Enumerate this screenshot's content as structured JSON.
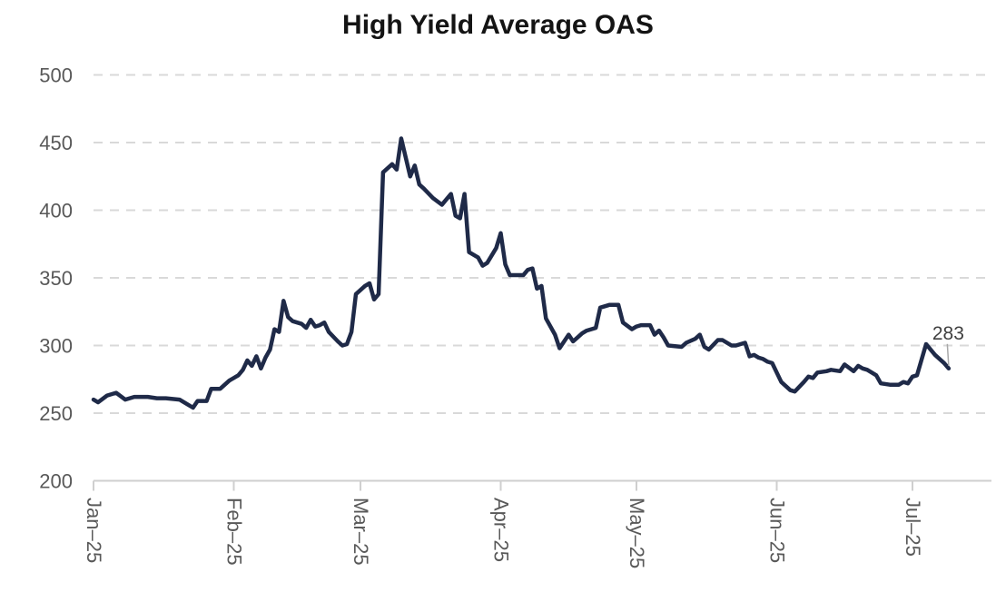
{
  "chart_data": {
    "type": "line",
    "title": "High Yield Average OAS",
    "xlabel": "",
    "ylabel": "",
    "ylim": [
      200,
      500
    ],
    "y_ticks": [
      200,
      250,
      300,
      350,
      400,
      450,
      500
    ],
    "x_ticks": [
      {
        "label": "Jan–25",
        "day": 0
      },
      {
        "label": "Feb–25",
        "day": 31
      },
      {
        "label": "Mar–25",
        "day": 59
      },
      {
        "label": "Apr–25",
        "day": 90
      },
      {
        "label": "May–25",
        "day": 120
      },
      {
        "label": "Jun–25",
        "day": 151
      },
      {
        "label": "Jul–25",
        "day": 181
      }
    ],
    "x_range_days": [
      0,
      198
    ],
    "grid": "dashed-horizontal",
    "legend": "none",
    "last_value_label": "283",
    "series": [
      {
        "name": "High Yield Average OAS",
        "color": "#1f2a48",
        "points": [
          [
            0,
            260
          ],
          [
            1,
            258
          ],
          [
            3,
            263
          ],
          [
            5,
            265
          ],
          [
            7,
            260
          ],
          [
            9,
            262
          ],
          [
            12,
            262
          ],
          [
            14,
            261
          ],
          [
            16,
            261
          ],
          [
            19,
            260
          ],
          [
            20,
            258
          ],
          [
            22,
            254
          ],
          [
            23,
            259
          ],
          [
            25,
            259
          ],
          [
            26,
            268
          ],
          [
            28,
            268
          ],
          [
            29,
            271
          ],
          [
            30,
            274
          ],
          [
            32,
            278
          ],
          [
            33,
            282
          ],
          [
            34,
            289
          ],
          [
            35,
            285
          ],
          [
            36,
            292
          ],
          [
            37,
            283
          ],
          [
            38,
            291
          ],
          [
            39,
            297
          ],
          [
            40,
            312
          ],
          [
            41,
            310
          ],
          [
            42,
            333
          ],
          [
            43,
            321
          ],
          [
            44,
            318
          ],
          [
            46,
            316
          ],
          [
            47,
            313
          ],
          [
            48,
            319
          ],
          [
            49,
            314
          ],
          [
            50,
            315
          ],
          [
            51,
            317
          ],
          [
            52,
            310
          ],
          [
            54,
            303
          ],
          [
            55,
            300
          ],
          [
            56,
            301
          ],
          [
            57,
            310
          ],
          [
            58,
            338
          ],
          [
            59,
            341
          ],
          [
            60,
            344
          ],
          [
            61,
            346
          ],
          [
            62,
            334
          ],
          [
            63,
            338
          ],
          [
            64,
            428
          ],
          [
            66,
            434
          ],
          [
            67,
            430
          ],
          [
            68,
            453
          ],
          [
            70,
            425
          ],
          [
            71,
            433
          ],
          [
            72,
            419
          ],
          [
            73,
            416
          ],
          [
            75,
            409
          ],
          [
            77,
            404
          ],
          [
            79,
            412
          ],
          [
            80,
            396
          ],
          [
            81,
            394
          ],
          [
            82,
            412
          ],
          [
            83,
            369
          ],
          [
            85,
            365
          ],
          [
            86,
            359
          ],
          [
            87,
            361
          ],
          [
            89,
            372
          ],
          [
            90,
            383
          ],
          [
            91,
            360
          ],
          [
            92,
            352
          ],
          [
            95,
            352
          ],
          [
            96,
            356
          ],
          [
            97,
            357
          ],
          [
            98,
            342
          ],
          [
            99,
            344
          ],
          [
            100,
            320
          ],
          [
            102,
            308
          ],
          [
            103,
            298
          ],
          [
            105,
            308
          ],
          [
            106,
            303
          ],
          [
            108,
            309
          ],
          [
            109,
            311
          ],
          [
            111,
            313
          ],
          [
            112,
            328
          ],
          [
            114,
            330
          ],
          [
            116,
            330
          ],
          [
            117,
            317
          ],
          [
            119,
            312
          ],
          [
            120,
            314
          ],
          [
            121,
            315
          ],
          [
            123,
            315
          ],
          [
            124,
            308
          ],
          [
            125,
            311
          ],
          [
            126,
            306
          ],
          [
            127,
            300
          ],
          [
            130,
            299
          ],
          [
            131,
            302
          ],
          [
            133,
            305
          ],
          [
            134,
            308
          ],
          [
            135,
            299
          ],
          [
            136,
            297
          ],
          [
            138,
            304
          ],
          [
            139,
            304
          ],
          [
            141,
            300
          ],
          [
            142,
            300
          ],
          [
            144,
            302
          ],
          [
            145,
            292
          ],
          [
            146,
            293
          ],
          [
            147,
            291
          ],
          [
            148,
            290
          ],
          [
            149,
            288
          ],
          [
            150,
            287
          ],
          [
            151,
            280
          ],
          [
            152,
            273
          ],
          [
            154,
            267
          ],
          [
            155,
            266
          ],
          [
            157,
            273
          ],
          [
            158,
            277
          ],
          [
            159,
            276
          ],
          [
            160,
            280
          ],
          [
            162,
            281
          ],
          [
            163,
            282
          ],
          [
            165,
            281
          ],
          [
            166,
            286
          ],
          [
            168,
            281
          ],
          [
            169,
            285
          ],
          [
            170,
            283
          ],
          [
            171,
            282
          ],
          [
            173,
            278
          ],
          [
            174,
            272
          ],
          [
            176,
            271
          ],
          [
            178,
            271
          ],
          [
            179,
            273
          ],
          [
            180,
            272
          ],
          [
            181,
            277
          ],
          [
            182,
            278
          ],
          [
            184,
            301
          ],
          [
            186,
            293
          ],
          [
            187,
            290
          ],
          [
            188,
            287
          ],
          [
            189,
            283
          ]
        ]
      }
    ],
    "colors": {
      "line": "#1f2a48",
      "grid": "#d9d9d9",
      "axis": "#cfcfcf",
      "tick_labels": "#595959",
      "annotation": "#3f3f3f",
      "leader": "#a8a8a8",
      "title": "#141414",
      "background": "#ffffff"
    }
  }
}
